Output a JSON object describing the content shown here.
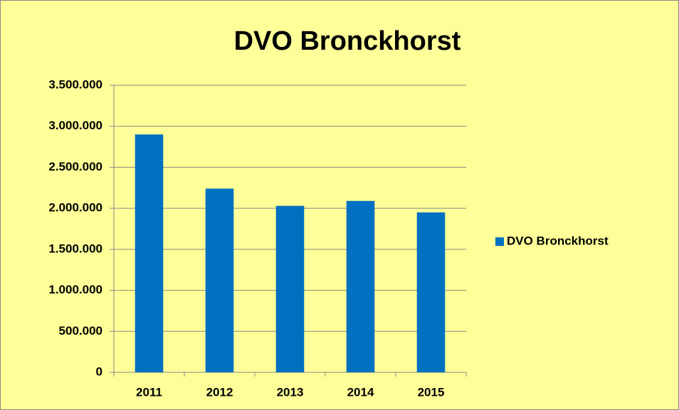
{
  "chart_data": {
    "type": "bar",
    "title": "DVO Bronckhorst",
    "categories": [
      "2011",
      "2012",
      "2013",
      "2014",
      "2015"
    ],
    "series": [
      {
        "name": "DVO Bronckhorst",
        "color": "#0070c0",
        "values": [
          2900000,
          2240000,
          2030000,
          2090000,
          1950000
        ]
      }
    ],
    "ylim": [
      0,
      3500000
    ],
    "yticks": [
      0,
      {
        "value": 500000,
        "label": "500.000"
      },
      {
        "value": 1000000,
        "label": "1.000.000"
      },
      {
        "value": 1500000,
        "label": "1.500.000"
      },
      {
        "value": 2000000,
        "label": "2.000.000"
      },
      {
        "value": 2500000,
        "label": "2.500.000"
      },
      {
        "value": 3000000,
        "label": "3.000.000"
      },
      {
        "value": 3500000,
        "label": "3.500.000"
      }
    ],
    "grid": true,
    "legend": "right"
  }
}
